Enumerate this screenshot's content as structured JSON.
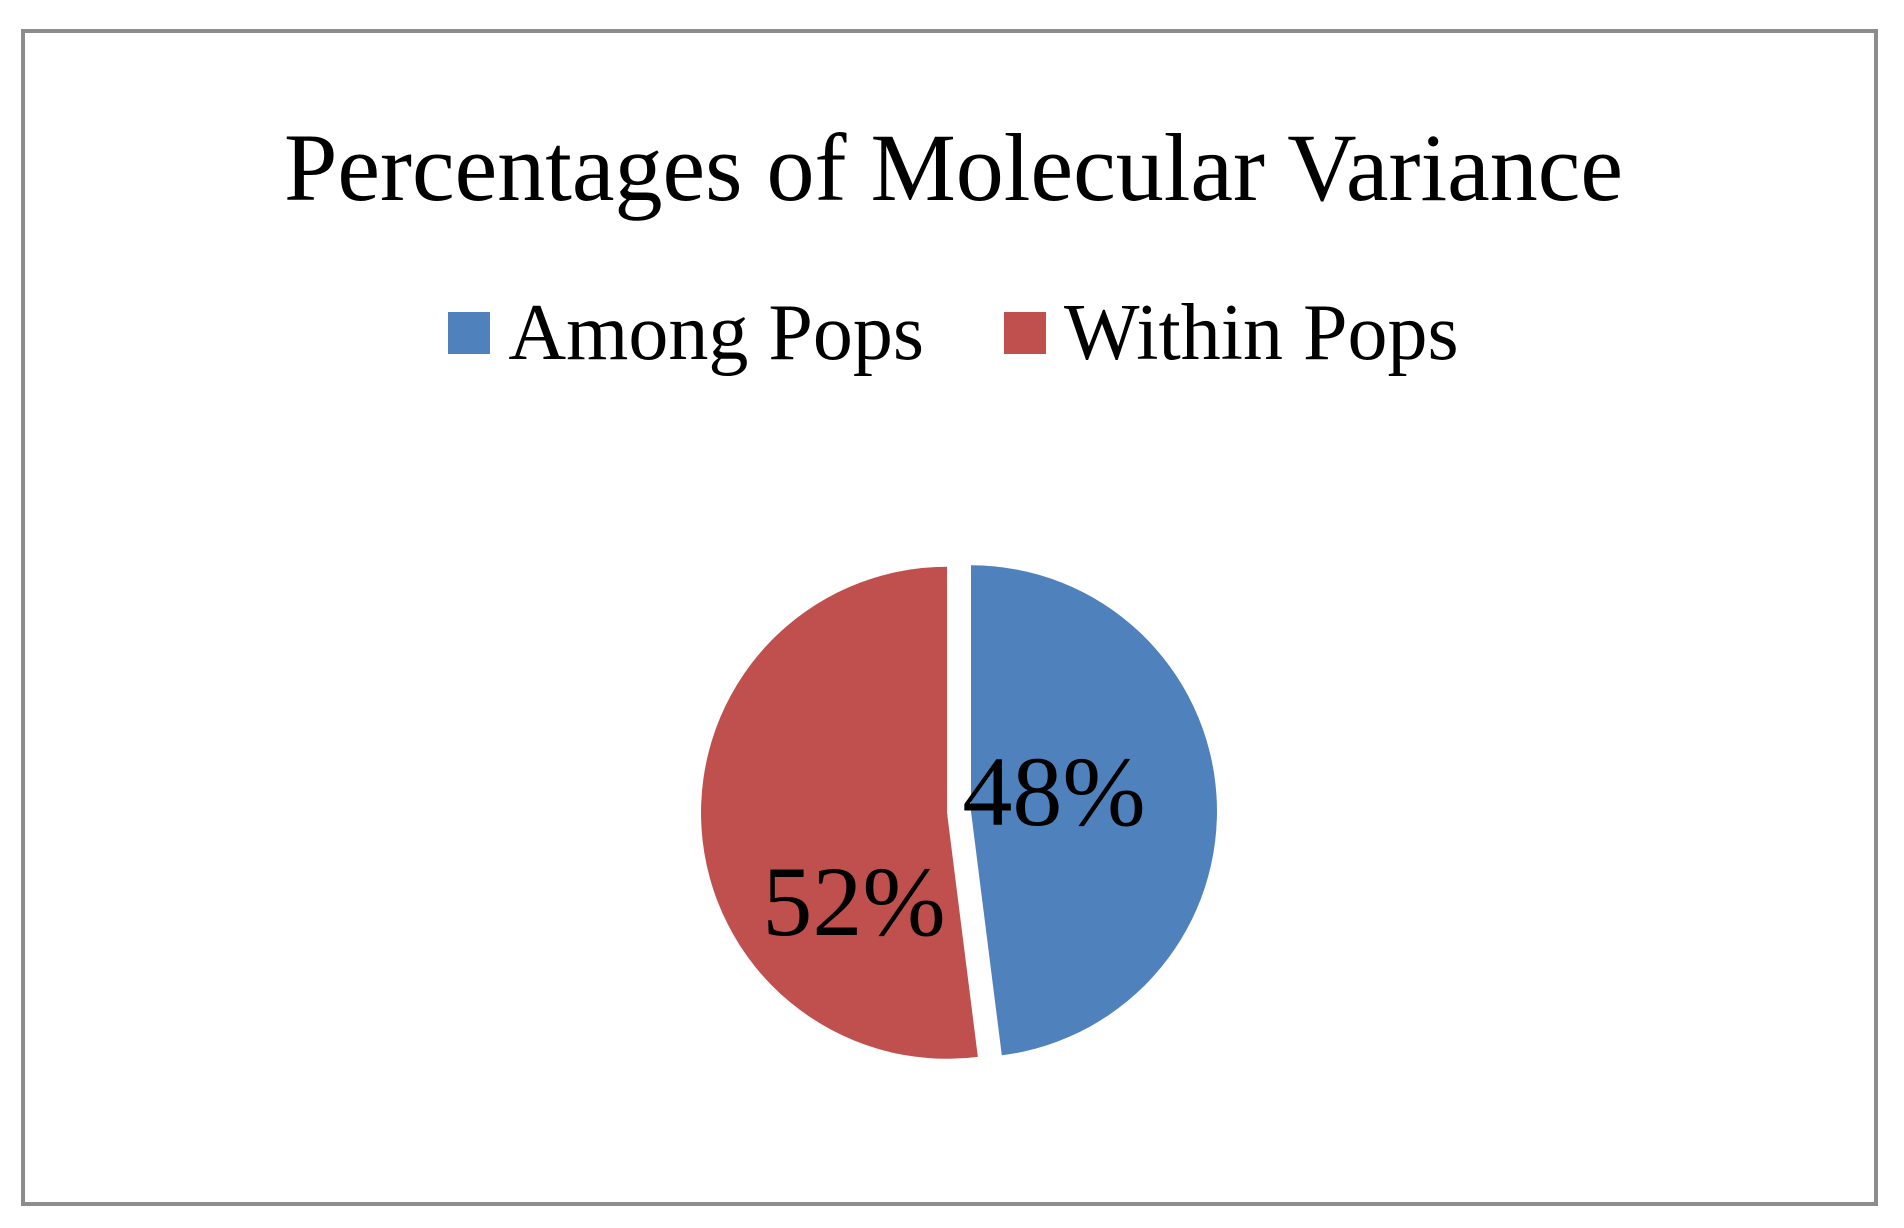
{
  "chart_data": {
    "type": "pie",
    "title": "Percentages of Molecular Variance",
    "legend_position": "top",
    "series": [
      {
        "categories": [
          "Among Pops",
          "Within Pops"
        ],
        "values": [
          48,
          52
        ],
        "labels": [
          "48%",
          "52%"
        ],
        "colors": [
          "#4f81bd",
          "#c0504d"
        ]
      }
    ],
    "start_angle_deg": 0,
    "direction": "clockwise",
    "exploded": true
  },
  "legend": {
    "items": [
      {
        "label": "Among Pops",
        "color": "#4f81bd"
      },
      {
        "label": "Within Pops",
        "color": "#c0504d"
      }
    ]
  }
}
